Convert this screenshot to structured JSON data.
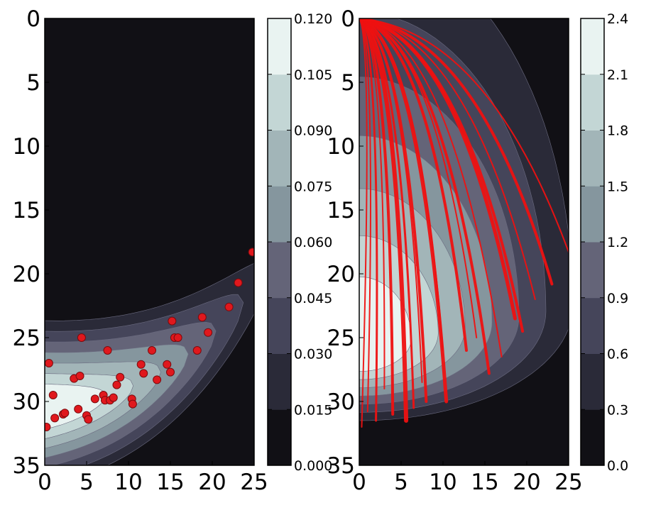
{
  "chart_data": [
    {
      "type": "contour",
      "title": "",
      "xlabel": "",
      "ylabel": "",
      "xlim": [
        0,
        25
      ],
      "ylim": [
        35,
        0
      ],
      "x_ticks": [
        "0",
        "5",
        "10",
        "15",
        "20",
        "25"
      ],
      "y_ticks": [
        "0",
        "5",
        "10",
        "15",
        "20",
        "25",
        "30",
        "35"
      ],
      "colorbar": {
        "min": 0.0,
        "max": 0.12,
        "ticks": [
          "0.000",
          "0.015",
          "0.030",
          "0.045",
          "0.060",
          "0.075",
          "0.090",
          "0.105",
          "0.120"
        ]
      },
      "levels": [
        0.015,
        0.03,
        0.045,
        0.06,
        0.075,
        0.09,
        0.105
      ],
      "scatter": {
        "x": [
          0.5,
          0.2,
          1.0,
          1.2,
          2.2,
          2.4,
          3.5,
          4.0,
          4.2,
          4.4,
          5.0,
          5.2,
          6.0,
          7.0,
          7.2,
          7.5,
          7.8,
          8.2,
          8.6,
          9.0,
          10.4,
          10.5,
          11.5,
          11.8,
          12.8,
          13.4,
          14.6,
          15.0,
          15.2,
          15.5,
          15.9,
          18.2,
          18.8,
          19.5,
          22.0,
          23.1,
          24.8
        ],
        "y": [
          27.0,
          32.0,
          29.5,
          31.3,
          31.0,
          30.9,
          28.2,
          30.6,
          28.0,
          25.0,
          31.1,
          31.4,
          29.8,
          29.5,
          29.9,
          26.0,
          29.9,
          29.7,
          28.7,
          28.1,
          29.8,
          30.2,
          27.1,
          27.8,
          26.0,
          28.3,
          27.1,
          27.7,
          23.7,
          25.0,
          25.0,
          26.0,
          23.4,
          24.6,
          22.6,
          20.7,
          18.3
        ]
      }
    },
    {
      "type": "contour",
      "title": "",
      "xlabel": "",
      "ylabel": "",
      "xlim": [
        0,
        25
      ],
      "ylim": [
        35,
        0
      ],
      "x_ticks": [
        "0",
        "5",
        "10",
        "15",
        "20",
        "25"
      ],
      "y_ticks": [
        "0",
        "5",
        "10",
        "15",
        "20",
        "25",
        "30",
        "35"
      ],
      "colorbar": {
        "min": 0.0,
        "max": 2.4,
        "ticks": [
          "0.0",
          "0.3",
          "0.6",
          "0.9",
          "1.2",
          "1.5",
          "1.8",
          "2.1",
          "2.4"
        ]
      },
      "levels": [
        0.3,
        0.6,
        0.9,
        1.2,
        1.5,
        1.8,
        2.1
      ],
      "trajectories": [
        {
          "end": [
            2.0,
            31.5
          ],
          "width": 3
        },
        {
          "end": [
            4.0,
            31.0
          ],
          "width": 4
        },
        {
          "end": [
            5.6,
            31.5
          ],
          "width": 6
        },
        {
          "end": [
            6.5,
            30.5
          ],
          "width": 3
        },
        {
          "end": [
            8.0,
            30.0
          ],
          "width": 4
        },
        {
          "end": [
            10.4,
            30.0
          ],
          "width": 5
        },
        {
          "end": [
            10.0,
            26.0
          ],
          "width": 2
        },
        {
          "end": [
            12.8,
            26.0
          ],
          "width": 4
        },
        {
          "end": [
            15.5,
            27.8
          ],
          "width": 4
        },
        {
          "end": [
            17.0,
            26.5
          ],
          "width": 2
        },
        {
          "end": [
            18.6,
            23.5
          ],
          "width": 5
        },
        {
          "end": [
            19.5,
            24.5
          ],
          "width": 4
        },
        {
          "end": [
            23.0,
            20.8
          ],
          "width": 4
        },
        {
          "end": [
            25.0,
            18.3
          ],
          "width": 2
        },
        {
          "end": [
            1.0,
            30.8
          ],
          "width": 2
        },
        {
          "end": [
            0.3,
            32.0
          ],
          "width": 2
        },
        {
          "end": [
            3.0,
            29.0
          ],
          "width": 2
        },
        {
          "end": [
            7.5,
            28.5
          ],
          "width": 2
        },
        {
          "end": [
            14.0,
            25.0
          ],
          "width": 2
        },
        {
          "end": [
            21.0,
            22.0
          ],
          "width": 2
        }
      ]
    }
  ]
}
